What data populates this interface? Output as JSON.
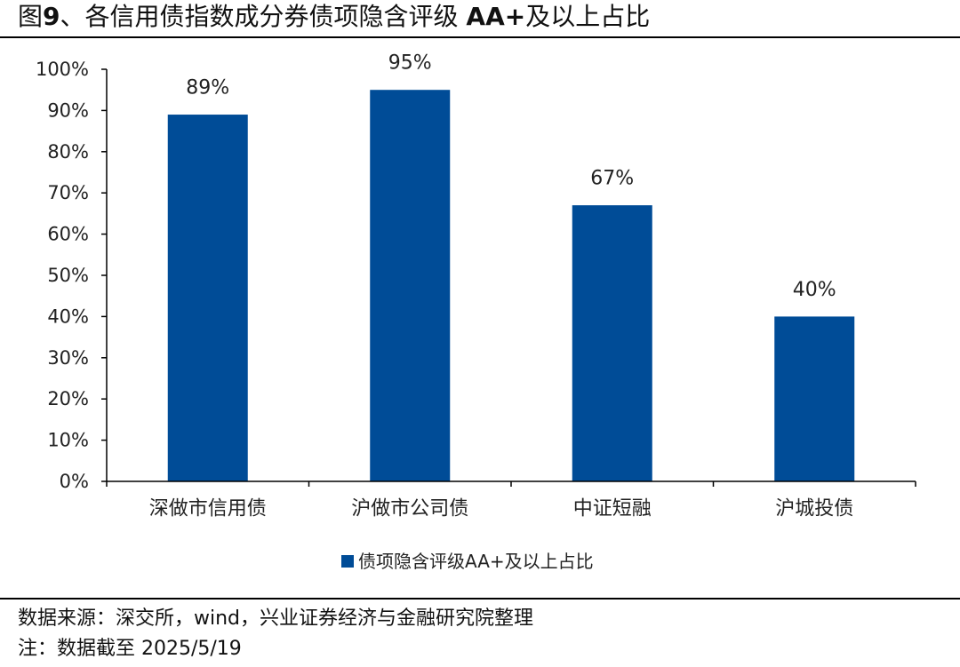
{
  "header": {
    "title_prefix": "图",
    "title_number": "9",
    "title_middle": "、各信用债指数成分券债项隐含评级 ",
    "title_rating": "AA+",
    "title_suffix": "及以上占比"
  },
  "footer": {
    "source": "数据来源：深交所，wind，兴业证券经济与金融研究院整理",
    "note": "注：数据截至 2025/5/19"
  },
  "chart_data": {
    "type": "bar",
    "title": "",
    "xlabel": "",
    "ylabel": "",
    "categories": [
      "深做市信用债",
      "沪做市公司债",
      "中证短融",
      "沪城投债"
    ],
    "series": [
      {
        "name": "债项隐含评级AA+及以上占比",
        "values": [
          89,
          95,
          67,
          40
        ],
        "data_labels": [
          "89%",
          "95%",
          "67%",
          "40%"
        ],
        "color": "#004C97"
      }
    ],
    "ylim": [
      0,
      100
    ],
    "yticks": [
      0,
      10,
      20,
      30,
      40,
      50,
      60,
      70,
      80,
      90,
      100
    ],
    "ytick_labels": [
      "0%",
      "10%",
      "20%",
      "30%",
      "40%",
      "50%",
      "60%",
      "70%",
      "80%",
      "90%",
      "100%"
    ],
    "grid": false,
    "legend_position": "bottom",
    "axis_color": "#000000"
  }
}
